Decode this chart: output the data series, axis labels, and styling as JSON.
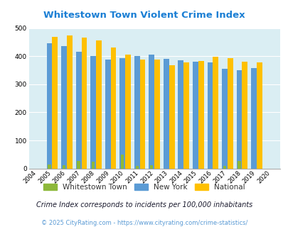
{
  "title": "Whitestown Town Violent Crime Index",
  "years": [
    2004,
    2005,
    2006,
    2007,
    2008,
    2009,
    2010,
    2011,
    2012,
    2013,
    2014,
    2015,
    2016,
    2017,
    2018,
    2019,
    2020
  ],
  "whitestown": [
    0,
    13,
    12,
    27,
    25,
    0,
    50,
    10,
    11,
    0,
    0,
    0,
    0,
    10,
    27,
    0,
    0
  ],
  "new_york": [
    0,
    445,
    435,
    415,
    400,
    388,
    394,
    400,
    406,
    391,
    385,
    381,
    378,
    356,
    350,
    357,
    0
  ],
  "national": [
    0,
    469,
    474,
    467,
    455,
    431,
    405,
    388,
    387,
    368,
    377,
    383,
    398,
    394,
    381,
    379,
    0
  ],
  "color_whitestown": "#8db83a",
  "color_new_york": "#5b9bd5",
  "color_national": "#ffc000",
  "background_color": "#daeef3",
  "ylim": [
    0,
    500
  ],
  "yticks": [
    0,
    100,
    200,
    300,
    400,
    500
  ],
  "footnote1": "Crime Index corresponds to incidents per 100,000 inhabitants",
  "footnote2": "© 2025 CityRating.com - https://www.cityrating.com/crime-statistics/",
  "title_color": "#1b7fd4",
  "footnote1_color": "#1a1a2e",
  "footnote2_color": "#5b9bd5",
  "legend_label_color": "#333333"
}
